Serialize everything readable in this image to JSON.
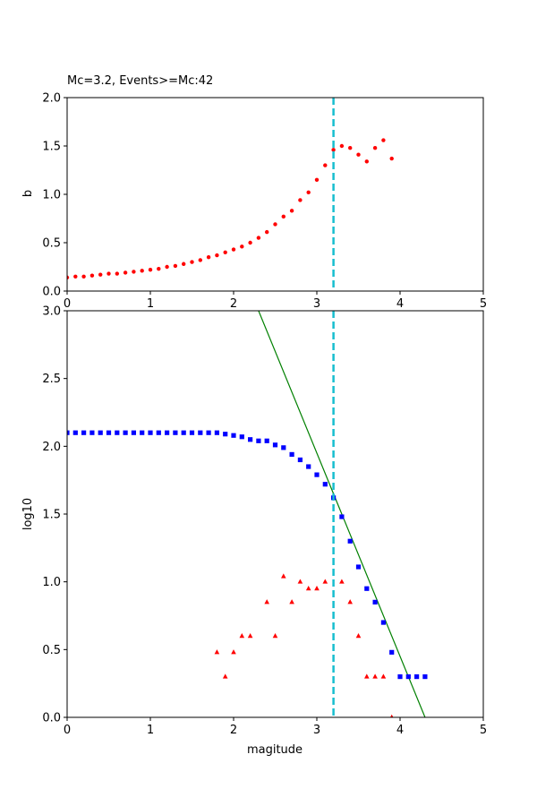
{
  "chart_data": [
    {
      "type": "scatter",
      "title": "Mc=3.2, Events>=Mc:42",
      "xlabel": "",
      "ylabel": "b",
      "xlim": [
        0,
        5
      ],
      "ylim": [
        0,
        2.0
      ],
      "xticks": [
        "0",
        "1",
        "2",
        "3",
        "4",
        "5"
      ],
      "yticks": [
        "0.0",
        "0.5",
        "1.0",
        "1.5",
        "2.0"
      ],
      "vline": {
        "x": 3.2,
        "color": "#17becf",
        "style": "dashed"
      },
      "series": [
        {
          "marker": "circle",
          "color": "#ff0000",
          "x": [
            0.0,
            0.1,
            0.2,
            0.3,
            0.4,
            0.5,
            0.6,
            0.7,
            0.8,
            0.9,
            1.0,
            1.1,
            1.2,
            1.3,
            1.4,
            1.5,
            1.6,
            1.7,
            1.8,
            1.9,
            2.0,
            2.1,
            2.2,
            2.3,
            2.4,
            2.5,
            2.6,
            2.7,
            2.8,
            2.9,
            3.0,
            3.1,
            3.2,
            3.3,
            3.4,
            3.5,
            3.6,
            3.7,
            3.8,
            3.9
          ],
          "y": [
            0.14,
            0.15,
            0.15,
            0.16,
            0.17,
            0.18,
            0.18,
            0.19,
            0.2,
            0.21,
            0.22,
            0.23,
            0.25,
            0.26,
            0.28,
            0.3,
            0.32,
            0.35,
            0.37,
            0.4,
            0.43,
            0.46,
            0.5,
            0.55,
            0.61,
            0.69,
            0.77,
            0.83,
            0.94,
            1.02,
            1.15,
            1.3,
            1.46,
            1.5,
            1.48,
            1.41,
            1.34,
            1.48,
            1.56,
            1.37
          ]
        }
      ]
    },
    {
      "type": "scatter",
      "title": "",
      "xlabel": "magitude",
      "ylabel": "log10",
      "xlim": [
        0,
        5
      ],
      "ylim": [
        0,
        3.0
      ],
      "xticks": [
        "0",
        "1",
        "2",
        "3",
        "4",
        "5"
      ],
      "yticks": [
        "0.0",
        "0.5",
        "1.0",
        "1.5",
        "2.0",
        "2.5",
        "3.0"
      ],
      "vline": {
        "x": 3.2,
        "color": "#17becf",
        "style": "dashed"
      },
      "fit_line": {
        "x": [
          2.3,
          4.3
        ],
        "y": [
          3.0,
          0.0
        ],
        "color": "#008000"
      },
      "series": [
        {
          "marker": "square",
          "color": "#0000ff",
          "x": [
            0.0,
            0.1,
            0.2,
            0.3,
            0.4,
            0.5,
            0.6,
            0.7,
            0.8,
            0.9,
            1.0,
            1.1,
            1.2,
            1.3,
            1.4,
            1.5,
            1.6,
            1.7,
            1.8,
            1.9,
            2.0,
            2.1,
            2.2,
            2.3,
            2.4,
            2.5,
            2.6,
            2.7,
            2.8,
            2.9,
            3.0,
            3.1,
            3.2,
            3.3,
            3.4,
            3.5,
            3.6,
            3.7,
            3.8,
            3.9,
            4.0,
            4.1,
            4.2,
            4.3
          ],
          "y": [
            2.1,
            2.1,
            2.1,
            2.1,
            2.1,
            2.1,
            2.1,
            2.1,
            2.1,
            2.1,
            2.1,
            2.1,
            2.1,
            2.1,
            2.1,
            2.1,
            2.1,
            2.1,
            2.1,
            2.09,
            2.08,
            2.07,
            2.05,
            2.04,
            2.04,
            2.01,
            1.99,
            1.94,
            1.9,
            1.85,
            1.79,
            1.72,
            1.62,
            1.48,
            1.3,
            1.11,
            0.95,
            0.85,
            0.7,
            0.48,
            0.3,
            0.3,
            0.3,
            0.3
          ]
        },
        {
          "marker": "triangle",
          "color": "#ff0000",
          "x": [
            1.8,
            1.9,
            2.0,
            2.1,
            2.2,
            2.4,
            2.5,
            2.6,
            2.7,
            2.8,
            2.9,
            3.0,
            3.1,
            3.3,
            3.4,
            3.5,
            3.6,
            3.7,
            3.8,
            3.9
          ],
          "y": [
            0.48,
            0.3,
            0.48,
            0.6,
            0.6,
            0.85,
            0.6,
            1.04,
            0.85,
            1.0,
            0.95,
            0.95,
            1.0,
            1.0,
            0.85,
            0.6,
            0.3,
            0.3,
            0.3,
            0.0
          ]
        }
      ]
    }
  ]
}
